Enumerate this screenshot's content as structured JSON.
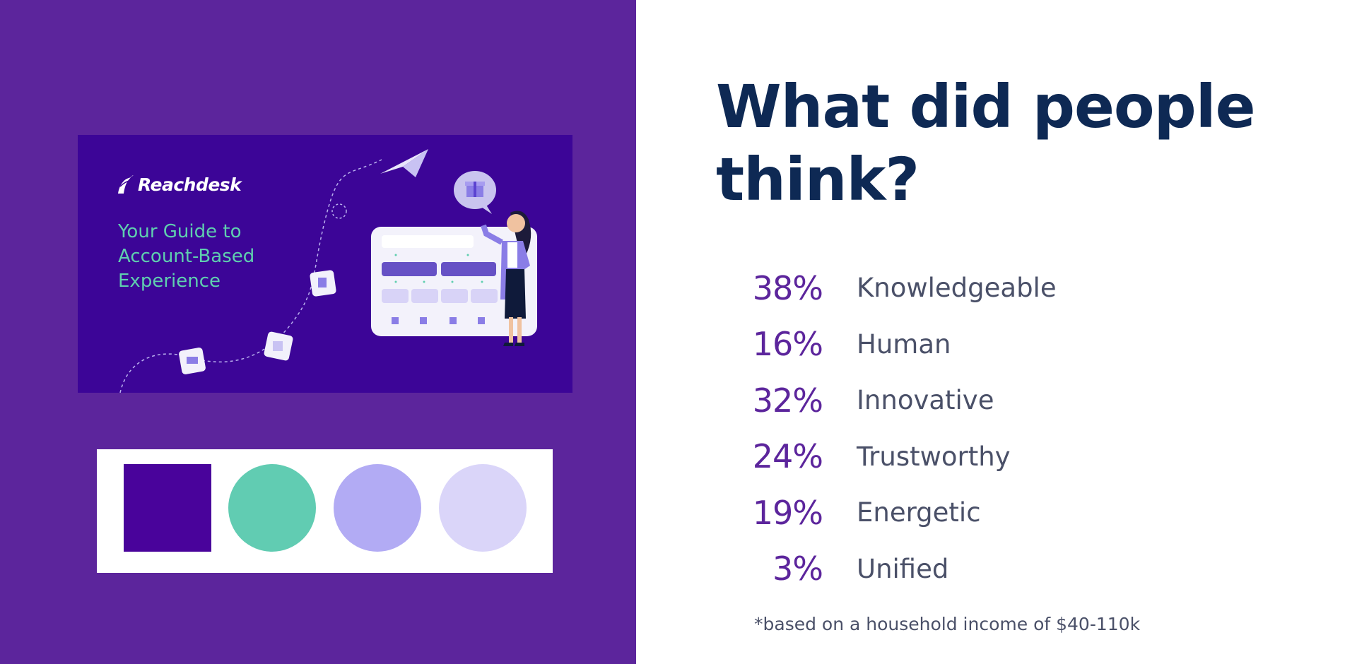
{
  "banner": {
    "brand": "Reachdesk",
    "title_lines": [
      "Your Guide to",
      "Account-Based",
      "Experience"
    ],
    "mock_brand": "Reachdesk"
  },
  "palette": [
    "#49039b",
    "#61ccb2",
    "#b2abf4",
    "#dad5f9"
  ],
  "heading_lines": [
    "What did people",
    "think?"
  ],
  "stats": [
    {
      "percent": "38%",
      "label": "Knowledgeable"
    },
    {
      "percent": "16%",
      "label": "Human"
    },
    {
      "percent": "32%",
      "label": "Innovative"
    },
    {
      "percent": "24%",
      "label": "Trustworthy"
    },
    {
      "percent": "19%",
      "label": "Energetic"
    },
    {
      "percent": "3%",
      "label": "Unified"
    }
  ],
  "footnote": "*based on a household income of $40-110k"
}
